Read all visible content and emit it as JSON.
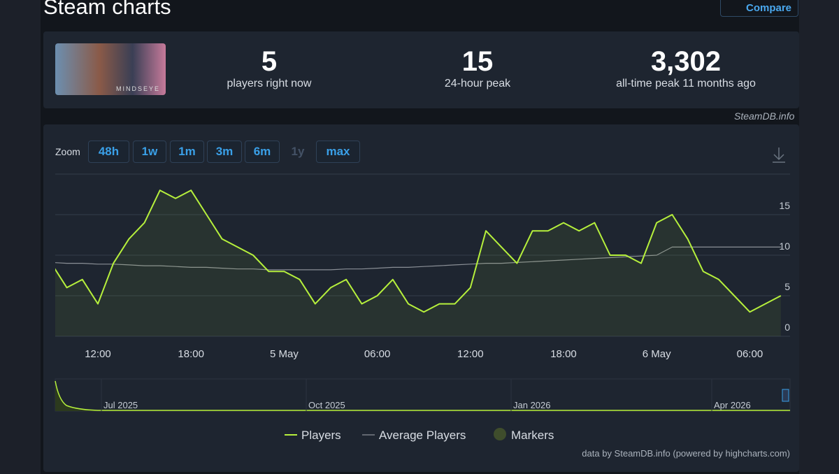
{
  "header": {
    "title": "Steam charts",
    "compare": "Compare"
  },
  "game": {
    "image_text": "MINDSEYE"
  },
  "stats": [
    {
      "value": "5",
      "label": "players right now"
    },
    {
      "value": "15",
      "label": "24-hour peak"
    },
    {
      "value": "3,302",
      "label": "all-time peak 11 months ago"
    }
  ],
  "watermark": "SteamDB.info",
  "zoom": {
    "label": "Zoom",
    "buttons": [
      "48h",
      "1w",
      "1m",
      "3m",
      "6m",
      "1y",
      "max"
    ],
    "disabled": "1y"
  },
  "chart_data": {
    "type": "line",
    "categories": [
      null,
      null,
      null,
      "12:00",
      null,
      null,
      null,
      null,
      null,
      "18:00",
      null,
      null,
      null,
      null,
      null,
      "5 May",
      null,
      null,
      null,
      null,
      null,
      "06:00",
      null,
      null,
      null,
      null,
      null,
      "12:00",
      null,
      null,
      null,
      null,
      null,
      "18:00",
      null,
      null,
      null,
      null,
      null,
      "6 May",
      null,
      null,
      null,
      null,
      null,
      "06:00",
      null,
      null
    ],
    "series": [
      {
        "name": "Players",
        "color": "#b6f03c",
        "values": [
          9,
          6,
          7,
          4,
          9,
          12,
          14,
          18,
          17,
          18,
          15,
          12,
          11,
          10,
          8,
          8,
          7,
          4,
          6,
          7,
          4,
          5,
          7,
          4,
          3,
          4,
          4,
          6,
          13,
          11,
          9,
          13,
          13,
          14,
          13,
          14,
          10,
          10,
          9,
          14,
          15,
          12,
          8,
          7,
          5,
          3,
          4,
          5
        ]
      },
      {
        "name": "Average Players",
        "color": "#8a8f96",
        "values": [
          9.1,
          9.0,
          9.0,
          8.9,
          8.9,
          8.8,
          8.7,
          8.7,
          8.6,
          8.5,
          8.5,
          8.4,
          8.3,
          8.3,
          8.2,
          8.2,
          8.2,
          8.2,
          8.2,
          8.3,
          8.3,
          8.4,
          8.5,
          8.5,
          8.6,
          8.7,
          8.8,
          8.9,
          9.0,
          9.0,
          9.1,
          9.2,
          9.3,
          9.4,
          9.5,
          9.6,
          9.7,
          9.8,
          9.9,
          10,
          11,
          11,
          11,
          11,
          11,
          11,
          11,
          11
        ]
      }
    ],
    "markers": {
      "name": "Markers",
      "color": "#3f4d2c"
    },
    "ylim": [
      0,
      20
    ],
    "yticks": [
      0,
      5,
      10,
      15
    ],
    "grid": true,
    "navigator_labels": [
      "Jul 2025",
      "Oct 2025",
      "Jan 2026",
      "Apr 2026"
    ],
    "credit": "data by SteamDB.info (powered by highcharts.com)"
  }
}
